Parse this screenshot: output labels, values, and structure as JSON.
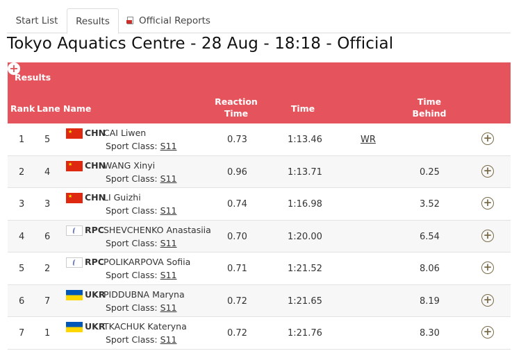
{
  "tabs": {
    "start_list": "Start List",
    "results": "Results",
    "official_reports": "Official Reports"
  },
  "venue_title": "Tokyo Aquatics Centre - 28 Aug - 18:18 - Official",
  "panel": {
    "title": "Results",
    "columns": {
      "rank": "Rank",
      "lane": "Lane",
      "name": "Name",
      "reaction": "Reaction Time",
      "time": "Time",
      "behind": "Time Behind"
    }
  },
  "colors": {
    "header_bg": "#e5535c",
    "plus_icon": "#7a6b48"
  },
  "rows": [
    {
      "rank": "1",
      "lane": "5",
      "flag": "chn",
      "noc": "CHN",
      "athlete": "CAI Liwen",
      "class_label": "Sport Class:",
      "class_value": "S11",
      "reaction": "0.73",
      "time": "1:13.46",
      "record": "WR",
      "behind": ""
    },
    {
      "rank": "2",
      "lane": "4",
      "flag": "chn",
      "noc": "CHN",
      "athlete": "WANG Xinyi",
      "class_label": "Sport Class:",
      "class_value": "S11",
      "reaction": "0.96",
      "time": "1:13.71",
      "record": "",
      "behind": "0.25"
    },
    {
      "rank": "3",
      "lane": "3",
      "flag": "chn",
      "noc": "CHN",
      "athlete": "LI Guizhi",
      "class_label": "Sport Class:",
      "class_value": "S11",
      "reaction": "0.74",
      "time": "1:16.98",
      "record": "",
      "behind": "3.52"
    },
    {
      "rank": "4",
      "lane": "6",
      "flag": "rpc",
      "noc": "RPC",
      "athlete": "SHEVCHENKO Anastasiia",
      "class_label": "Sport Class:",
      "class_value": "S11",
      "reaction": "0.70",
      "time": "1:20.00",
      "record": "",
      "behind": "6.54"
    },
    {
      "rank": "5",
      "lane": "2",
      "flag": "rpc",
      "noc": "RPC",
      "athlete": "POLIKARPOVA Sofiia",
      "class_label": "Sport Class:",
      "class_value": "S11",
      "reaction": "0.71",
      "time": "1:21.52",
      "record": "",
      "behind": "8.06"
    },
    {
      "rank": "6",
      "lane": "7",
      "flag": "ukr",
      "noc": "UKR",
      "athlete": "PIDDUBNA Maryna",
      "class_label": "Sport Class:",
      "class_value": "S11",
      "reaction": "0.72",
      "time": "1:21.65",
      "record": "",
      "behind": "8.19"
    },
    {
      "rank": "7",
      "lane": "1",
      "flag": "ukr",
      "noc": "UKR",
      "athlete": "TKACHUK Kateryna",
      "class_label": "Sport Class:",
      "class_value": "S11",
      "reaction": "0.72",
      "time": "1:21.76",
      "record": "",
      "behind": "8.30"
    }
  ]
}
